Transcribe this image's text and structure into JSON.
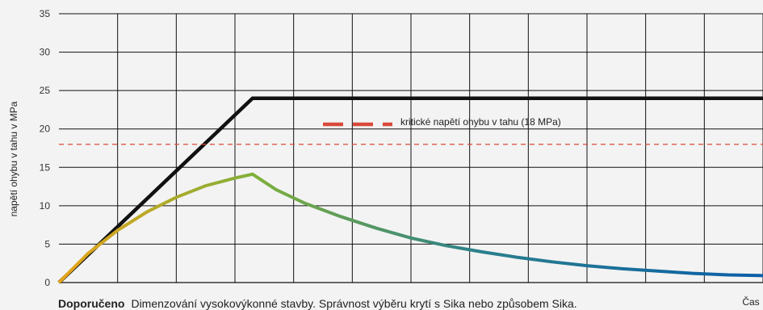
{
  "chart_data": {
    "type": "line",
    "ylabel": "napětí ohybu v tahu v MPa",
    "xlabel": "Čas",
    "ylim": [
      0,
      35
    ],
    "yticks": [
      0,
      5,
      10,
      15,
      20,
      25,
      30,
      35
    ],
    "xlim": [
      0,
      12
    ],
    "x_tick_labels": "none",
    "grid": true,
    "series": [
      {
        "color": "#111111",
        "x": [
          0,
          3.3,
          12
        ],
        "values": [
          0,
          24,
          24
        ]
      },
      {
        "gradient": [
          "#e8a317",
          "#7fb03a",
          "#2a7f8c",
          "#0a5ea8"
        ],
        "x": [
          0,
          0.5,
          1,
          1.5,
          2,
          2.5,
          3,
          3.3,
          3.7,
          4.2,
          4.8,
          5.4,
          6,
          6.6,
          7.2,
          7.8,
          8.4,
          9,
          9.6,
          10.2,
          10.8,
          11.4,
          12
        ],
        "values": [
          0,
          3.8,
          6.8,
          9.2,
          11.1,
          12.6,
          13.6,
          14.1,
          12.1,
          10.3,
          8.6,
          7.1,
          5.8,
          4.8,
          4.0,
          3.3,
          2.7,
          2.2,
          1.8,
          1.5,
          1.2,
          1.0,
          0.9
        ]
      }
    ],
    "reference_lines": [
      {
        "y": 18,
        "color": "#d94a3c",
        "style": "dashed",
        "label": "kritické napětí ohybu v tahu (18 MPa)"
      }
    ]
  },
  "caption": {
    "bold": "Doporučeno",
    "text": "Dimenzování vysokovýkonné stavby. Správnost výběru krytí s Sika nebo způsobem Sika."
  }
}
